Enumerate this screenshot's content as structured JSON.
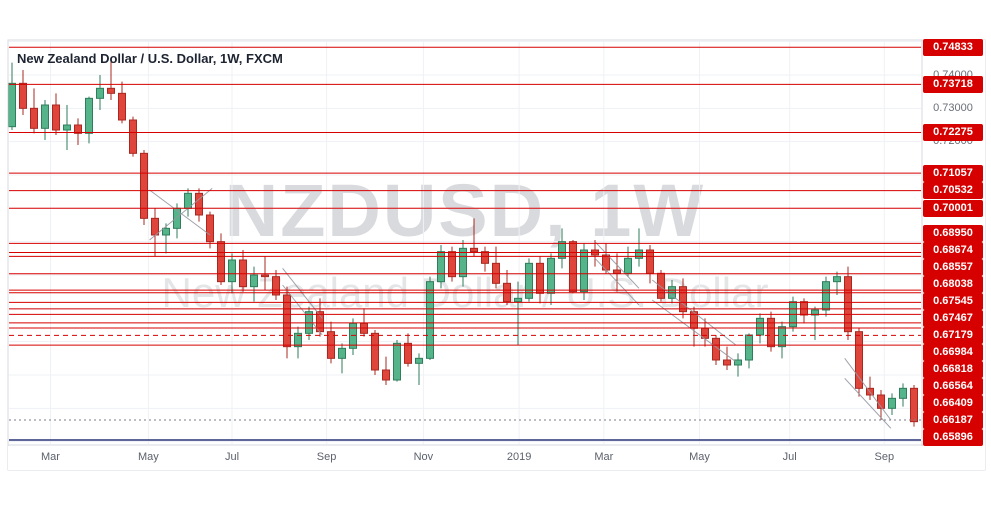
{
  "legend": {
    "title": "New Zealand Dollar / U.S. Dollar, 1W, FXCM"
  },
  "watermark": {
    "line1": "NZDUSD, 1W",
    "line2": "New Zealand Dollar / U.S. Dollar"
  },
  "colors": {
    "level_red": "#d60000",
    "navy_line": "#283577",
    "dotted_grey": "#7a7e87",
    "candle_up_fill": "#56b48a",
    "candle_up_border": "#2f7d5b",
    "candle_down_fill": "#e0453c",
    "candle_down_border": "#a8281f",
    "grid": "#eef1f6",
    "frame": "#d6d9e0",
    "drawing": "#9598a1",
    "axis_text": "#6a6e79"
  },
  "chart_data": {
    "type": "candlestick",
    "title": "New Zealand Dollar / U.S. Dollar, 1W, FXCM",
    "symbol": "NZDUSD",
    "timeframe": "1W",
    "provider": "FXCM",
    "y_range": [
      0.629,
      0.7505
    ],
    "start_week": "2018-02-12",
    "interval_days": 7,
    "x_labels": [
      {
        "text": "Mar",
        "week": 3.5
      },
      {
        "text": "May",
        "week": 12.4
      },
      {
        "text": "Jul",
        "week": 20.0
      },
      {
        "text": "Sep",
        "week": 28.6
      },
      {
        "text": "Nov",
        "week": 37.4
      },
      {
        "text": "2019",
        "week": 46.1
      },
      {
        "text": "Mar",
        "week": 53.8
      },
      {
        "text": "May",
        "week": 62.5
      },
      {
        "text": "Jul",
        "week": 70.7
      },
      {
        "text": "Sep",
        "week": 79.3
      }
    ],
    "grey_axis_labels": [
      {
        "text": "0.74000",
        "price": 0.74
      },
      {
        "text": "0.73000",
        "price": 0.73
      },
      {
        "text": "0.72000",
        "price": 0.72
      }
    ],
    "levels": [
      {
        "label": "0.74833",
        "price": 0.74833,
        "style": "solid"
      },
      {
        "label": "0.73718",
        "price": 0.73718,
        "style": "solid"
      },
      {
        "label": "0.72275",
        "price": 0.72275,
        "style": "solid"
      },
      {
        "label": "0.71057",
        "price": 0.71057,
        "style": "solid"
      },
      {
        "label": "0.70532",
        "price": 0.70532,
        "style": "solid"
      },
      {
        "label": "0.70001",
        "price": 0.70001,
        "style": "solid"
      },
      {
        "label": "0.68950",
        "price": 0.6895,
        "style": "solid"
      },
      {
        "label": "0.68674",
        "price": 0.68674,
        "style": "solid"
      },
      {
        "label": "0.68557",
        "price": 0.68557,
        "style": "solid"
      },
      {
        "label": "0.68038",
        "price": 0.68038,
        "style": "solid"
      },
      {
        "label": "0.67545",
        "price": 0.67545,
        "style": "solid"
      },
      {
        "label": "0.67467",
        "price": 0.67467,
        "style": "solid"
      },
      {
        "label": "0.67179",
        "price": 0.67179,
        "style": "solid"
      },
      {
        "label": "0.66984",
        "price": 0.66984,
        "style": "solid"
      },
      {
        "label": "0.66818",
        "price": 0.66818,
        "style": "solid"
      },
      {
        "label": "0.66564",
        "price": 0.66564,
        "style": "solid"
      },
      {
        "label": "0.66409",
        "price": 0.66409,
        "style": "solid"
      },
      {
        "label": "0.66187",
        "price": 0.66187,
        "style": "dashed"
      },
      {
        "label": "0.65896",
        "price": 0.65896,
        "style": "solid"
      }
    ],
    "extra_lines": [
      {
        "approx_price": 0.6365,
        "style": "dotted",
        "color_key": "dotted_grey"
      },
      {
        "approx_price": 0.6305,
        "style": "solid",
        "color_key": "navy_line"
      }
    ],
    "drawings": [
      {
        "type": "trendline",
        "points": [
          [
            12.5,
            0.7055
          ],
          [
            18.0,
            0.692
          ]
        ]
      },
      {
        "type": "trendline",
        "points": [
          [
            12.5,
            0.6905
          ],
          [
            18.2,
            0.706
          ]
        ]
      },
      {
        "type": "trendline",
        "points": [
          [
            24.6,
            0.682
          ],
          [
            28.2,
            0.667
          ]
        ]
      },
      {
        "type": "trendline",
        "points": [
          [
            24.6,
            0.677
          ],
          [
            28.2,
            0.662
          ]
        ]
      },
      {
        "type": "trendline",
        "points": [
          [
            53.0,
            0.69
          ],
          [
            57.0,
            0.676
          ]
        ]
      },
      {
        "type": "trendline",
        "points": [
          [
            53.0,
            0.685
          ],
          [
            57.0,
            0.671
          ]
        ]
      },
      {
        "type": "trendline",
        "points": [
          [
            58.2,
            0.6785
          ],
          [
            65.8,
            0.659
          ]
        ]
      },
      {
        "type": "trendline",
        "points": [
          [
            58.2,
            0.6725
          ],
          [
            65.8,
            0.654
          ]
        ]
      },
      {
        "type": "trendline",
        "points": [
          [
            75.7,
            0.655
          ],
          [
            79.9,
            0.6365
          ]
        ]
      },
      {
        "type": "trendline",
        "points": [
          [
            75.7,
            0.649
          ],
          [
            79.9,
            0.634
          ]
        ]
      }
    ],
    "candles": [
      [
        0.7245,
        0.7437,
        0.7235,
        0.7375
      ],
      [
        0.7375,
        0.7415,
        0.728,
        0.73
      ],
      [
        0.73,
        0.736,
        0.7225,
        0.724
      ],
      [
        0.724,
        0.7325,
        0.7205,
        0.731
      ],
      [
        0.731,
        0.7345,
        0.722,
        0.7235
      ],
      [
        0.7235,
        0.731,
        0.7175,
        0.725
      ],
      [
        0.725,
        0.727,
        0.719,
        0.7225
      ],
      [
        0.7225,
        0.7335,
        0.7195,
        0.733
      ],
      [
        0.733,
        0.74,
        0.7295,
        0.736
      ],
      [
        0.736,
        0.7445,
        0.7325,
        0.7345
      ],
      [
        0.7345,
        0.738,
        0.7255,
        0.7265
      ],
      [
        0.7265,
        0.7275,
        0.7155,
        0.7165
      ],
      [
        0.7165,
        0.7175,
        0.695,
        0.697
      ],
      [
        0.697,
        0.7,
        0.6855,
        0.692
      ],
      [
        0.692,
        0.6955,
        0.6865,
        0.694
      ],
      [
        0.694,
        0.7015,
        0.691,
        0.7
      ],
      [
        0.7,
        0.706,
        0.6975,
        0.7045
      ],
      [
        0.7045,
        0.706,
        0.696,
        0.698
      ],
      [
        0.698,
        0.699,
        0.688,
        0.69
      ],
      [
        0.69,
        0.6925,
        0.677,
        0.678
      ],
      [
        0.678,
        0.6865,
        0.6745,
        0.6845
      ],
      [
        0.6845,
        0.6875,
        0.675,
        0.6765
      ],
      [
        0.6765,
        0.6825,
        0.672,
        0.68
      ],
      [
        0.68,
        0.6855,
        0.6755,
        0.6795
      ],
      [
        0.6795,
        0.6815,
        0.6725,
        0.674
      ],
      [
        0.674,
        0.6765,
        0.655,
        0.6585
      ],
      [
        0.6585,
        0.6645,
        0.655,
        0.6625
      ],
      [
        0.6625,
        0.6705,
        0.6605,
        0.669
      ],
      [
        0.669,
        0.673,
        0.6615,
        0.663
      ],
      [
        0.663,
        0.666,
        0.6535,
        0.655
      ],
      [
        0.655,
        0.6595,
        0.6505,
        0.658
      ],
      [
        0.658,
        0.667,
        0.656,
        0.6655
      ],
      [
        0.6655,
        0.67,
        0.6615,
        0.6625
      ],
      [
        0.6625,
        0.6635,
        0.65,
        0.6515
      ],
      [
        0.6515,
        0.6555,
        0.647,
        0.6485
      ],
      [
        0.6485,
        0.6605,
        0.648,
        0.6595
      ],
      [
        0.6595,
        0.6625,
        0.6525,
        0.6535
      ],
      [
        0.6535,
        0.6565,
        0.647,
        0.655
      ],
      [
        0.655,
        0.6795,
        0.6545,
        0.678
      ],
      [
        0.678,
        0.689,
        0.676,
        0.687
      ],
      [
        0.687,
        0.6885,
        0.678,
        0.6795
      ],
      [
        0.6795,
        0.6905,
        0.6765,
        0.688
      ],
      [
        0.688,
        0.697,
        0.6855,
        0.687
      ],
      [
        0.687,
        0.6885,
        0.681,
        0.6835
      ],
      [
        0.6835,
        0.6885,
        0.676,
        0.6775
      ],
      [
        0.6775,
        0.6815,
        0.671,
        0.672
      ],
      [
        0.672,
        0.678,
        0.659,
        0.673
      ],
      [
        0.673,
        0.685,
        0.672,
        0.6835
      ],
      [
        0.6835,
        0.6855,
        0.6715,
        0.6745
      ],
      [
        0.6745,
        0.6865,
        0.671,
        0.685
      ],
      [
        0.685,
        0.694,
        0.682,
        0.69
      ],
      [
        0.69,
        0.6905,
        0.6745,
        0.675
      ],
      [
        0.675,
        0.6895,
        0.6725,
        0.6875
      ],
      [
        0.6875,
        0.6905,
        0.6825,
        0.686
      ],
      [
        0.686,
        0.6895,
        0.6805,
        0.6815
      ],
      [
        0.6815,
        0.6865,
        0.675,
        0.6805
      ],
      [
        0.6805,
        0.6885,
        0.6795,
        0.685
      ],
      [
        0.685,
        0.694,
        0.6825,
        0.6875
      ],
      [
        0.6875,
        0.689,
        0.6775,
        0.6805
      ],
      [
        0.6805,
        0.6815,
        0.672,
        0.673
      ],
      [
        0.673,
        0.6785,
        0.6715,
        0.6765
      ],
      [
        0.6765,
        0.679,
        0.667,
        0.669
      ],
      [
        0.669,
        0.6705,
        0.6585,
        0.664
      ],
      [
        0.664,
        0.667,
        0.6585,
        0.661
      ],
      [
        0.661,
        0.662,
        0.653,
        0.6545
      ],
      [
        0.6545,
        0.6585,
        0.6515,
        0.653
      ],
      [
        0.653,
        0.6565,
        0.6495,
        0.6545
      ],
      [
        0.6545,
        0.6625,
        0.652,
        0.662
      ],
      [
        0.662,
        0.6685,
        0.6595,
        0.667
      ],
      [
        0.667,
        0.669,
        0.657,
        0.6585
      ],
      [
        0.6585,
        0.666,
        0.655,
        0.6645
      ],
      [
        0.6645,
        0.6735,
        0.663,
        0.672
      ],
      [
        0.672,
        0.673,
        0.6655,
        0.668
      ],
      [
        0.668,
        0.6705,
        0.6605,
        0.6695
      ],
      [
        0.6695,
        0.6795,
        0.6675,
        0.678
      ],
      [
        0.678,
        0.681,
        0.674,
        0.6795
      ],
      [
        0.6795,
        0.6825,
        0.6605,
        0.663
      ],
      [
        0.663,
        0.664,
        0.6435,
        0.646
      ],
      [
        0.646,
        0.6495,
        0.6425,
        0.644
      ],
      [
        0.644,
        0.6455,
        0.6365,
        0.64
      ],
      [
        0.64,
        0.6445,
        0.638,
        0.643
      ],
      [
        0.643,
        0.6475,
        0.6405,
        0.646
      ],
      [
        0.646,
        0.647,
        0.6345,
        0.636
      ]
    ]
  }
}
